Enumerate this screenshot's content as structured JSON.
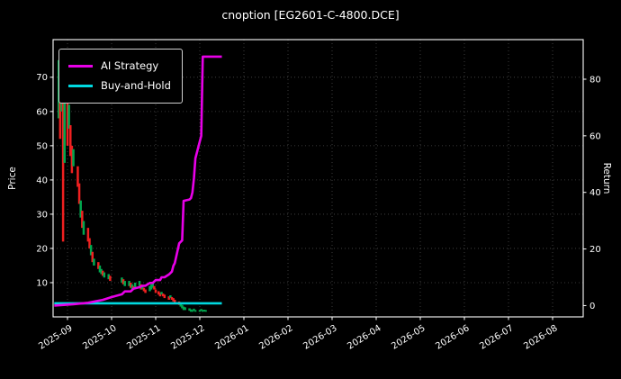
{
  "window": {
    "title": "cnoption [EG2601-C-4800.DCE]"
  },
  "chart_data": {
    "type": "line",
    "title": "cnoption [EG2601-C-4800.DCE]",
    "xlabel": "",
    "ylabel_left": "Price",
    "ylabel_right": "Return",
    "grid": true,
    "background": "#000000",
    "text_color": "#ffffff",
    "grid_color": "#4a4a4a",
    "spine_color": "#ffffff",
    "x_ticks": [
      "2025-09",
      "2025-10",
      "2025-11",
      "2025-12",
      "2026-01",
      "2026-02",
      "2026-03",
      "2026-04",
      "2026-05",
      "2026-06",
      "2026-07",
      "2026-08"
    ],
    "price_ticks": [
      10,
      20,
      30,
      40,
      50,
      60,
      70
    ],
    "price_ylim": [
      0,
      81
    ],
    "return_ticks": [
      0,
      20,
      40,
      60,
      80
    ],
    "return_ylim": [
      -4,
      94
    ],
    "legend": {
      "position": "upper-left",
      "entries": [
        {
          "label": "AI Strategy",
          "color": "#e800e8"
        },
        {
          "label": "Buy-and-Hold",
          "color": "#00d9e0"
        }
      ]
    },
    "series": [
      {
        "name": "AI Strategy",
        "axis": "return",
        "color": "#e800e8",
        "width": 2.6,
        "points": [
          [
            "2025-08-22",
            0
          ],
          [
            "2025-09-05",
            0.5
          ],
          [
            "2025-09-15",
            1
          ],
          [
            "2025-09-25",
            2
          ],
          [
            "2025-10-01",
            3
          ],
          [
            "2025-10-08",
            4
          ],
          [
            "2025-10-10",
            5
          ],
          [
            "2025-10-14",
            5
          ],
          [
            "2025-10-16",
            6
          ],
          [
            "2025-10-20",
            6.5
          ],
          [
            "2025-10-22",
            7
          ],
          [
            "2025-10-24",
            7
          ],
          [
            "2025-10-27",
            8
          ],
          [
            "2025-10-29",
            8
          ],
          [
            "2025-10-31",
            9
          ],
          [
            "2025-11-04",
            9
          ],
          [
            "2025-11-05",
            10
          ],
          [
            "2025-11-07",
            10
          ],
          [
            "2025-11-10",
            11
          ],
          [
            "2025-11-12",
            12
          ],
          [
            "2025-11-13",
            14
          ],
          [
            "2025-11-14",
            15
          ],
          [
            "2025-11-17",
            22
          ],
          [
            "2025-11-19",
            23
          ],
          [
            "2025-11-20",
            37
          ],
          [
            "2025-11-24",
            37.5
          ],
          [
            "2025-11-25",
            38
          ],
          [
            "2025-11-26",
            40
          ],
          [
            "2025-11-27",
            45
          ],
          [
            "2025-11-28",
            52
          ],
          [
            "2025-12-01",
            58
          ],
          [
            "2025-12-02",
            60
          ],
          [
            "2025-12-03",
            88
          ],
          [
            "2025-12-16",
            88
          ]
        ]
      },
      {
        "name": "Buy-and-Hold",
        "axis": "return",
        "color": "#00d9e0",
        "width": 2.6,
        "points": [
          [
            "2025-08-22",
            0.8
          ],
          [
            "2025-10-15",
            0.8
          ],
          [
            "2025-12-16",
            0.8
          ]
        ]
      }
    ],
    "candles": {
      "axis": "price",
      "up_color": "#00a84f",
      "down_color": "#f02020",
      "bars": [
        [
          "2025-08-25",
          58,
          75,
          "u"
        ],
        [
          "2025-08-26",
          52,
          68,
          "d"
        ],
        [
          "2025-08-27",
          60,
          76,
          "u"
        ],
        [
          "2025-08-28",
          22,
          74,
          "d"
        ],
        [
          "2025-08-29",
          45,
          66,
          "u"
        ],
        [
          "2025-09-01",
          50,
          63,
          "d"
        ],
        [
          "2025-09-02",
          55,
          62,
          "u"
        ],
        [
          "2025-09-03",
          47,
          56,
          "d"
        ],
        [
          "2025-09-04",
          42,
          50,
          "d"
        ],
        [
          "2025-09-05",
          44,
          49,
          "u"
        ],
        [
          "2025-09-08",
          38,
          44,
          "d"
        ],
        [
          "2025-09-09",
          33,
          39,
          "d"
        ],
        [
          "2025-09-10",
          29,
          34,
          "u"
        ],
        [
          "2025-09-11",
          26,
          31,
          "d"
        ],
        [
          "2025-09-12",
          24,
          28,
          "u"
        ],
        [
          "2025-09-15",
          22,
          26,
          "d"
        ],
        [
          "2025-09-16",
          20,
          23,
          "d"
        ],
        [
          "2025-09-17",
          18,
          21,
          "u"
        ],
        [
          "2025-09-18",
          16,
          19,
          "d"
        ],
        [
          "2025-09-19",
          15,
          17,
          "u"
        ],
        [
          "2025-09-22",
          14,
          16,
          "d"
        ],
        [
          "2025-09-23",
          13,
          15,
          "u"
        ],
        [
          "2025-09-24",
          12.5,
          14,
          "u"
        ],
        [
          "2025-09-25",
          12,
          13.5,
          "d"
        ],
        [
          "2025-09-26",
          11.5,
          13,
          "u"
        ],
        [
          "2025-09-29",
          11,
          12.5,
          "u"
        ],
        [
          "2025-09-30",
          10.5,
          12,
          "d"
        ],
        [
          "2025-10-08",
          10,
          11.5,
          "u"
        ],
        [
          "2025-10-09",
          9.5,
          11,
          "d"
        ],
        [
          "2025-10-10",
          9,
          10.5,
          "u"
        ],
        [
          "2025-10-13",
          9,
          10.5,
          "u"
        ],
        [
          "2025-10-14",
          8.5,
          10,
          "d"
        ],
        [
          "2025-10-15",
          8,
          9.5,
          "u"
        ],
        [
          "2025-10-16",
          8,
          9,
          "d"
        ],
        [
          "2025-10-17",
          8.5,
          10,
          "u"
        ],
        [
          "2025-10-20",
          9,
          10.5,
          "u"
        ],
        [
          "2025-10-21",
          8,
          9.5,
          "d"
        ],
        [
          "2025-10-22",
          8,
          9,
          "u"
        ],
        [
          "2025-10-23",
          7.5,
          8.5,
          "d"
        ],
        [
          "2025-10-24",
          7,
          8,
          "d"
        ],
        [
          "2025-10-27",
          7.5,
          9,
          "u"
        ],
        [
          "2025-10-28",
          8,
          9.5,
          "u"
        ],
        [
          "2025-10-29",
          8.5,
          10,
          "u"
        ],
        [
          "2025-10-30",
          8,
          9,
          "d"
        ],
        [
          "2025-10-31",
          7,
          8,
          "d"
        ],
        [
          "2025-11-03",
          6.5,
          7.5,
          "d"
        ],
        [
          "2025-11-04",
          6,
          7,
          "d"
        ],
        [
          "2025-11-05",
          6.5,
          7.3,
          "u"
        ],
        [
          "2025-11-06",
          6,
          6.8,
          "d"
        ],
        [
          "2025-11-07",
          5.5,
          6.5,
          "d"
        ],
        [
          "2025-11-10",
          5,
          6,
          "d"
        ],
        [
          "2025-11-11",
          5.5,
          6.3,
          "u"
        ],
        [
          "2025-11-12",
          5,
          5.8,
          "d"
        ],
        [
          "2025-11-13",
          4.5,
          5.5,
          "d"
        ],
        [
          "2025-11-14",
          4,
          5,
          "d"
        ],
        [
          "2025-11-17",
          3.5,
          4.5,
          "d"
        ],
        [
          "2025-11-18",
          3,
          4,
          "u"
        ],
        [
          "2025-11-19",
          2.5,
          3.5,
          "u"
        ],
        [
          "2025-11-20",
          2,
          3,
          "u"
        ],
        [
          "2025-11-21",
          2,
          2.8,
          "u"
        ],
        [
          "2025-11-24",
          1.8,
          2.5,
          "u"
        ],
        [
          "2025-11-25",
          1.5,
          2.2,
          "u"
        ],
        [
          "2025-11-26",
          1.5,
          2,
          "u"
        ],
        [
          "2025-11-27",
          1.8,
          2.4,
          "u"
        ],
        [
          "2025-11-28",
          1.5,
          2,
          "u"
        ],
        [
          "2025-12-01",
          1.5,
          2,
          "u"
        ],
        [
          "2025-12-02",
          1.8,
          2.3,
          "u"
        ],
        [
          "2025-12-03",
          1.5,
          2,
          "u"
        ],
        [
          "2025-12-04",
          1.6,
          2.1,
          "u"
        ],
        [
          "2025-12-05",
          1.5,
          2,
          "u"
        ]
      ]
    }
  }
}
